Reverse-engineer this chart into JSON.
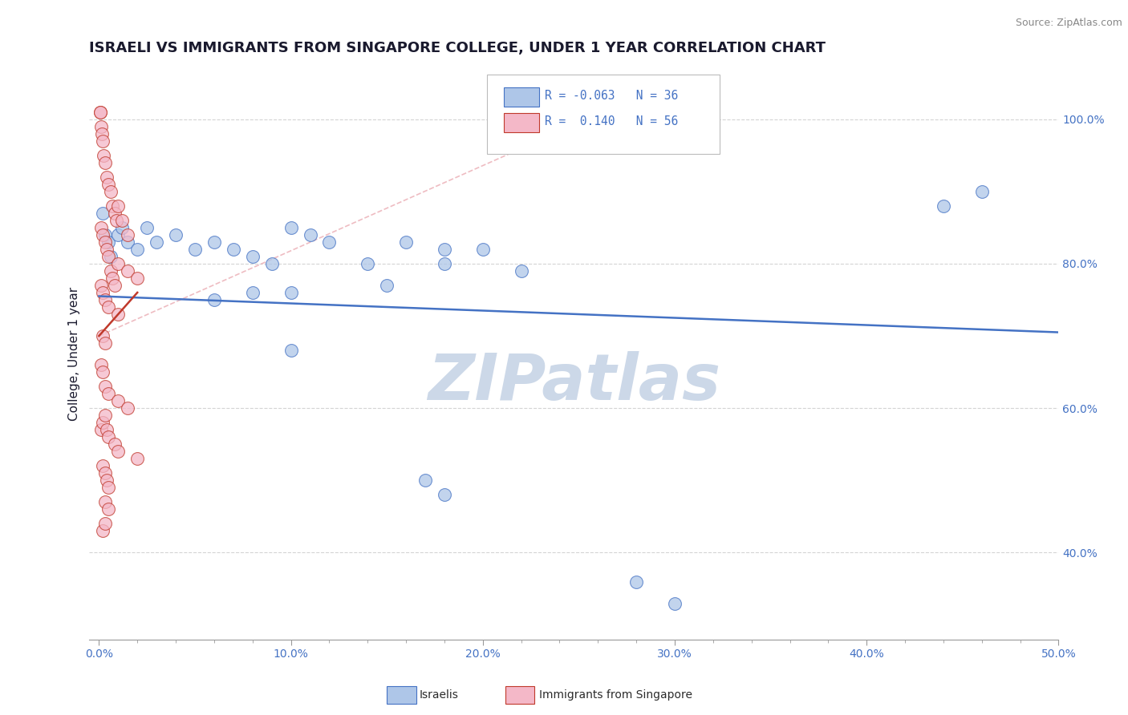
{
  "title": "ISRAELI VS IMMIGRANTS FROM SINGAPORE COLLEGE, UNDER 1 YEAR CORRELATION CHART",
  "source": "Source: ZipAtlas.com",
  "ylabel": "College, Under 1 year",
  "x_tick_labels": [
    "0.0%",
    "",
    "",
    "",
    "",
    "10.0%",
    "",
    "",
    "",
    "",
    "20.0%",
    "",
    "",
    "",
    "",
    "30.0%",
    "",
    "",
    "",
    "",
    "40.0%",
    "",
    "",
    "",
    "",
    "50.0%"
  ],
  "x_tick_values": [
    0.0,
    2.0,
    4.0,
    6.0,
    8.0,
    10.0,
    12.0,
    14.0,
    16.0,
    18.0,
    20.0,
    22.0,
    24.0,
    26.0,
    28.0,
    30.0,
    32.0,
    34.0,
    36.0,
    38.0,
    40.0,
    42.0,
    44.0,
    46.0,
    48.0,
    50.0
  ],
  "y_tick_labels": [
    "40.0%",
    "60.0%",
    "80.0%",
    "100.0%"
  ],
  "y_tick_values": [
    40.0,
    60.0,
    80.0,
    100.0
  ],
  "xlim": [
    -0.5,
    50.0
  ],
  "ylim": [
    28.0,
    107.0
  ],
  "legend_r_blue": "-0.063",
  "legend_n_blue": "36",
  "legend_r_pink": " 0.140",
  "legend_n_pink": "56",
  "legend_label_blue": "Israelis",
  "legend_label_pink": "Immigrants from Singapore",
  "watermark": "ZIPatlas",
  "blue_scatter": [
    [
      0.2,
      87
    ],
    [
      0.3,
      84
    ],
    [
      0.5,
      83
    ],
    [
      0.6,
      81
    ],
    [
      1.0,
      84
    ],
    [
      1.2,
      85
    ],
    [
      1.5,
      83
    ],
    [
      2.0,
      82
    ],
    [
      2.5,
      85
    ],
    [
      3.0,
      83
    ],
    [
      4.0,
      84
    ],
    [
      5.0,
      82
    ],
    [
      6.0,
      83
    ],
    [
      7.0,
      82
    ],
    [
      8.0,
      81
    ],
    [
      9.0,
      80
    ],
    [
      10.0,
      85
    ],
    [
      11.0,
      84
    ],
    [
      12.0,
      83
    ],
    [
      14.0,
      80
    ],
    [
      16.0,
      83
    ],
    [
      18.0,
      82
    ],
    [
      20.0,
      82
    ],
    [
      22.0,
      79
    ],
    [
      6.0,
      75
    ],
    [
      8.0,
      76
    ],
    [
      10.0,
      76
    ],
    [
      15.0,
      77
    ],
    [
      18.0,
      80
    ],
    [
      10.0,
      68
    ],
    [
      17.0,
      50
    ],
    [
      18.0,
      48
    ],
    [
      28.0,
      36
    ],
    [
      30.0,
      33
    ],
    [
      44.0,
      88
    ],
    [
      46.0,
      90
    ]
  ],
  "pink_scatter": [
    [
      0.05,
      101
    ],
    [
      0.08,
      101
    ],
    [
      0.1,
      99
    ],
    [
      0.15,
      98
    ],
    [
      0.2,
      97
    ],
    [
      0.25,
      95
    ],
    [
      0.3,
      94
    ],
    [
      0.4,
      92
    ],
    [
      0.5,
      91
    ],
    [
      0.6,
      90
    ],
    [
      0.7,
      88
    ],
    [
      0.8,
      87
    ],
    [
      0.9,
      86
    ],
    [
      1.0,
      88
    ],
    [
      1.2,
      86
    ],
    [
      1.5,
      84
    ],
    [
      0.1,
      85
    ],
    [
      0.2,
      84
    ],
    [
      0.3,
      83
    ],
    [
      0.4,
      82
    ],
    [
      0.5,
      81
    ],
    [
      0.6,
      79
    ],
    [
      0.7,
      78
    ],
    [
      0.8,
      77
    ],
    [
      1.0,
      80
    ],
    [
      1.5,
      79
    ],
    [
      2.0,
      78
    ],
    [
      0.1,
      77
    ],
    [
      0.2,
      76
    ],
    [
      0.3,
      75
    ],
    [
      0.5,
      74
    ],
    [
      1.0,
      73
    ],
    [
      0.2,
      70
    ],
    [
      0.3,
      69
    ],
    [
      0.1,
      66
    ],
    [
      0.2,
      65
    ],
    [
      0.3,
      63
    ],
    [
      0.5,
      62
    ],
    [
      1.0,
      61
    ],
    [
      1.5,
      60
    ],
    [
      0.1,
      57
    ],
    [
      0.2,
      58
    ],
    [
      0.3,
      59
    ],
    [
      0.4,
      57
    ],
    [
      0.5,
      56
    ],
    [
      0.8,
      55
    ],
    [
      1.0,
      54
    ],
    [
      2.0,
      53
    ],
    [
      0.2,
      52
    ],
    [
      0.3,
      51
    ],
    [
      0.4,
      50
    ],
    [
      0.5,
      49
    ],
    [
      0.3,
      47
    ],
    [
      0.5,
      46
    ],
    [
      0.2,
      43
    ],
    [
      0.3,
      44
    ]
  ],
  "blue_line_x": [
    0.0,
    50.0
  ],
  "blue_line_y": [
    75.5,
    70.5
  ],
  "pink_line_x": [
    0.0,
    2.0
  ],
  "pink_line_y": [
    70.0,
    76.0
  ],
  "diag_line_x": [
    0.0,
    28.0
  ],
  "diag_line_y": [
    70.0,
    103.0
  ],
  "title_color": "#1a1a2e",
  "blue_dot_color": "#aec6e8",
  "pink_dot_color": "#f4b8c8",
  "blue_line_color": "#4472c4",
  "pink_line_color": "#c0392b",
  "diag_line_color": "#e8a0a8",
  "grid_color": "#d0d0d0",
  "background_color": "#ffffff",
  "watermark_color": "#ccd8e8",
  "title_fontsize": 13,
  "axis_label_fontsize": 11,
  "tick_fontsize": 10,
  "legend_fontsize": 11,
  "dot_size": 130,
  "dot_alpha": 0.75
}
